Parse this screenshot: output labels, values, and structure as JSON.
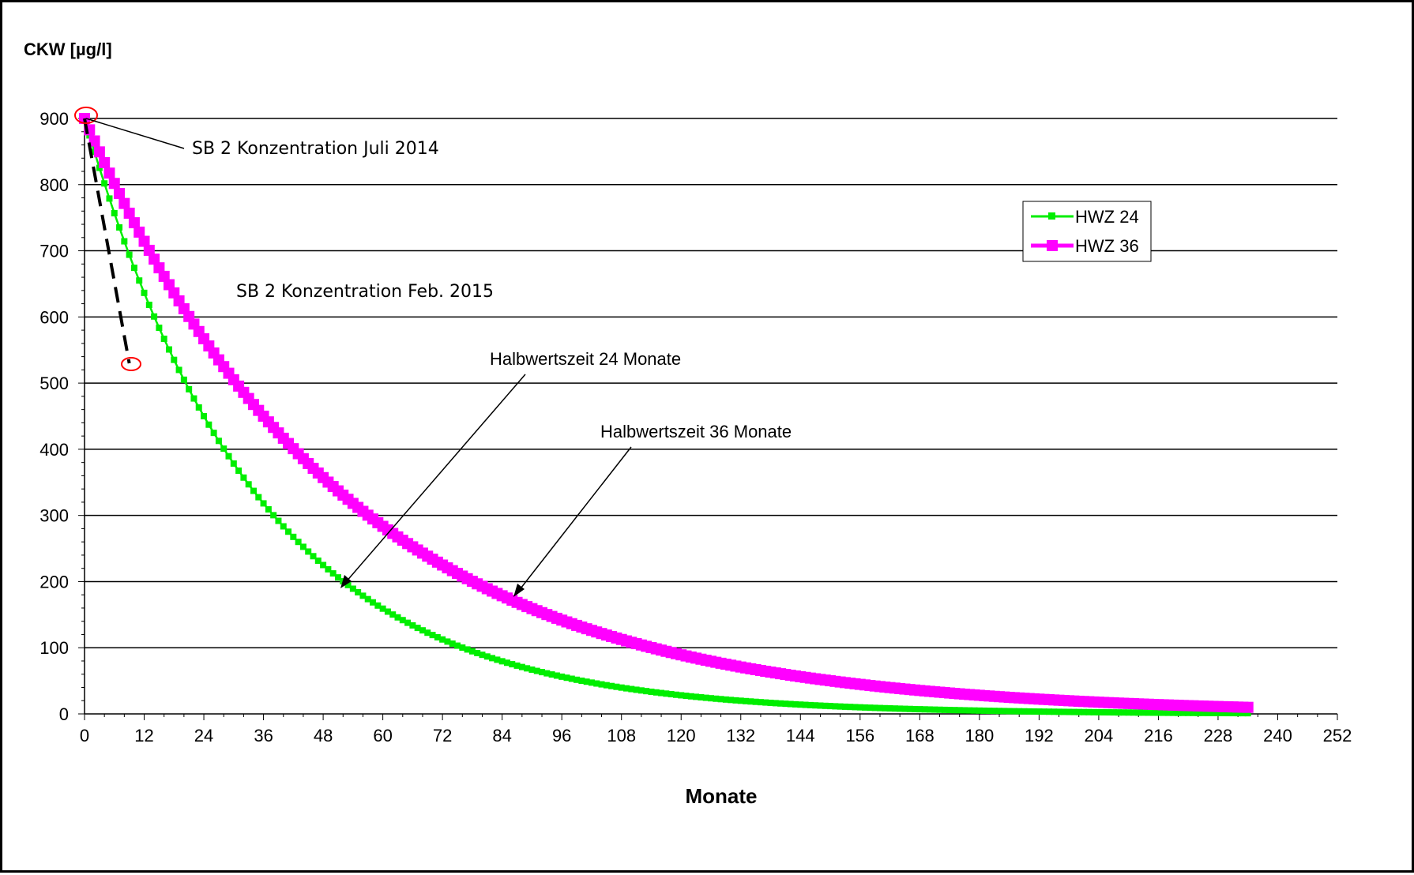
{
  "chart_data": {
    "type": "line",
    "ylabel": "CKW [µg/l]",
    "xlabel": "Monate",
    "xlim": [
      0,
      252
    ],
    "ylim": [
      0,
      900
    ],
    "x_ticks": [
      0,
      12,
      24,
      36,
      48,
      60,
      72,
      84,
      96,
      108,
      120,
      132,
      144,
      156,
      168,
      180,
      192,
      204,
      216,
      228,
      240,
      252
    ],
    "y_ticks": [
      0,
      100,
      200,
      300,
      400,
      500,
      600,
      700,
      800,
      900
    ],
    "grid": "horizontal",
    "legend_position": "top-right",
    "series": [
      {
        "name": "HWZ 24",
        "color": "#00ee00",
        "marker": "square",
        "initial_value": 900,
        "half_life_months": 24,
        "x_start": 0,
        "x_end": 234,
        "x_step": 1
      },
      {
        "name": "HWZ 36",
        "color": "#ff00ff",
        "marker": "square",
        "initial_value": 900,
        "half_life_months": 36,
        "x_start": 0,
        "x_end": 234,
        "x_step": 1
      }
    ],
    "measured_line": {
      "points": [
        {
          "x": 0,
          "y": 900
        },
        {
          "x": 9,
          "y": 530
        }
      ],
      "color": "#000000",
      "style": "dashed"
    },
    "annotations": [
      {
        "text": "SB 2 Konzentration Juli 2014"
      },
      {
        "text": "SB 2 Konzentration Feb. 2015"
      },
      {
        "text": "Halbwertszeit 24 Monate"
      },
      {
        "text": "Halbwertszeit 36 Monate"
      }
    ]
  }
}
